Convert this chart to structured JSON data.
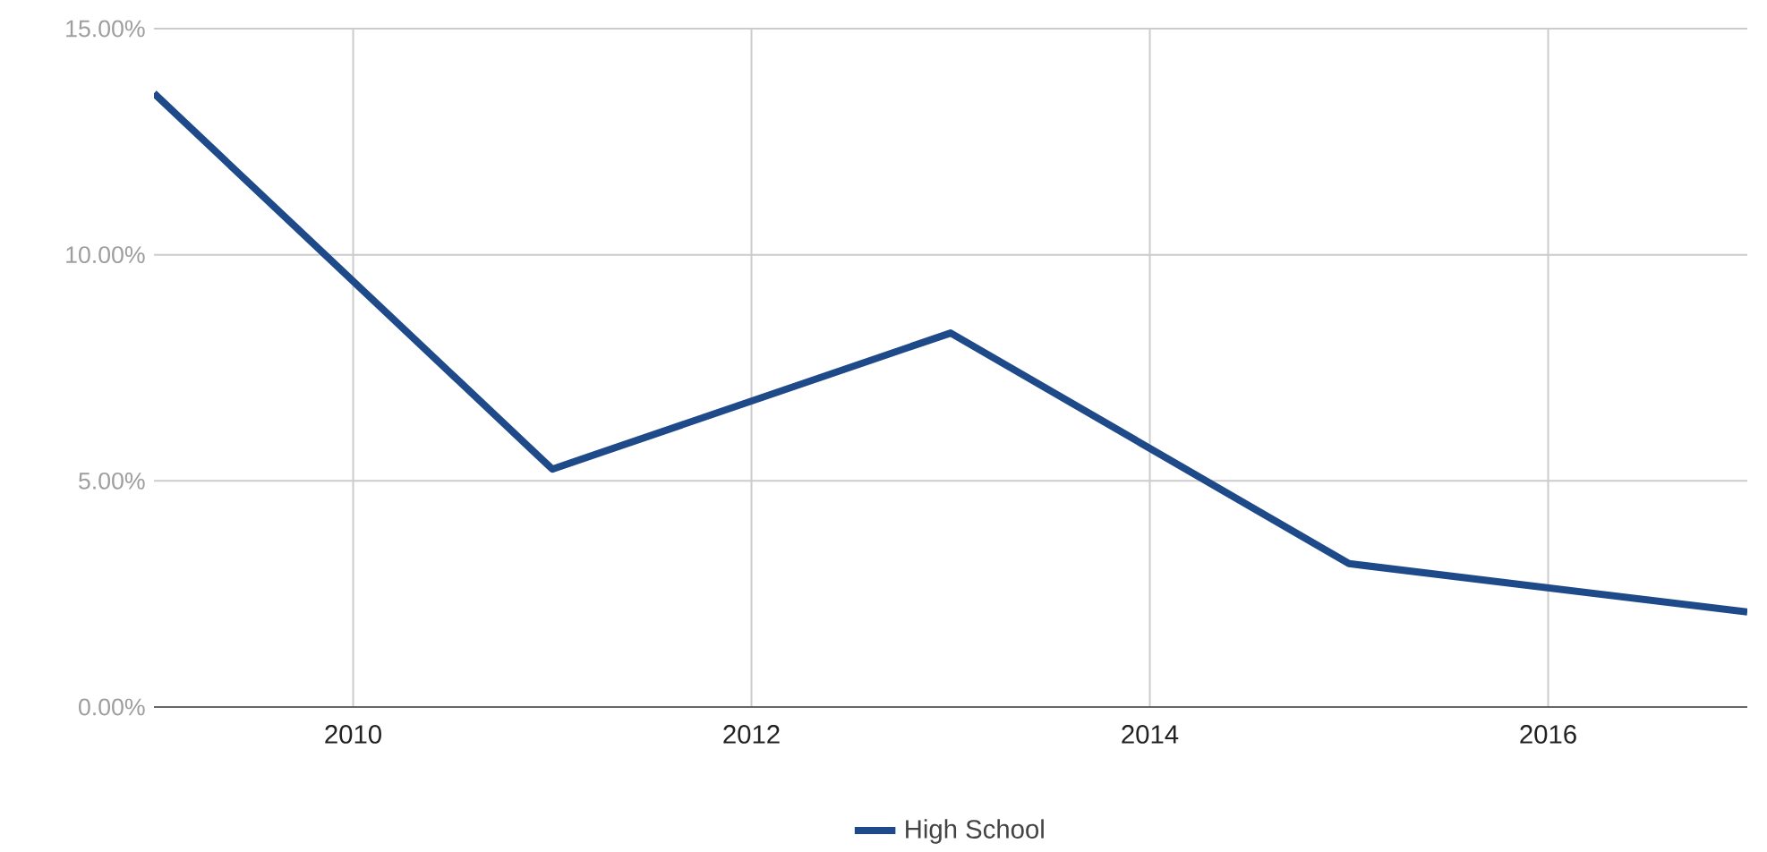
{
  "chart_data": {
    "type": "line",
    "x": [
      2009,
      2011,
      2013,
      2015,
      2017
    ],
    "series": [
      {
        "name": "High School",
        "color": "#1f4a8a",
        "values": [
          13.57,
          5.26,
          8.27,
          3.17,
          2.1
        ]
      }
    ],
    "xlim": [
      2009,
      2017
    ],
    "xticks": [
      2010,
      2012,
      2014,
      2016
    ],
    "ylim": [
      0,
      15
    ],
    "yticks": [
      {
        "value": 0,
        "label": "0.00%"
      },
      {
        "value": 5,
        "label": "5.00%"
      },
      {
        "value": 10,
        "label": "10.00%"
      },
      {
        "value": 15,
        "label": "15.00%"
      }
    ],
    "grid": true,
    "legend": "bottom",
    "marker": "none",
    "line_style": "solid"
  }
}
